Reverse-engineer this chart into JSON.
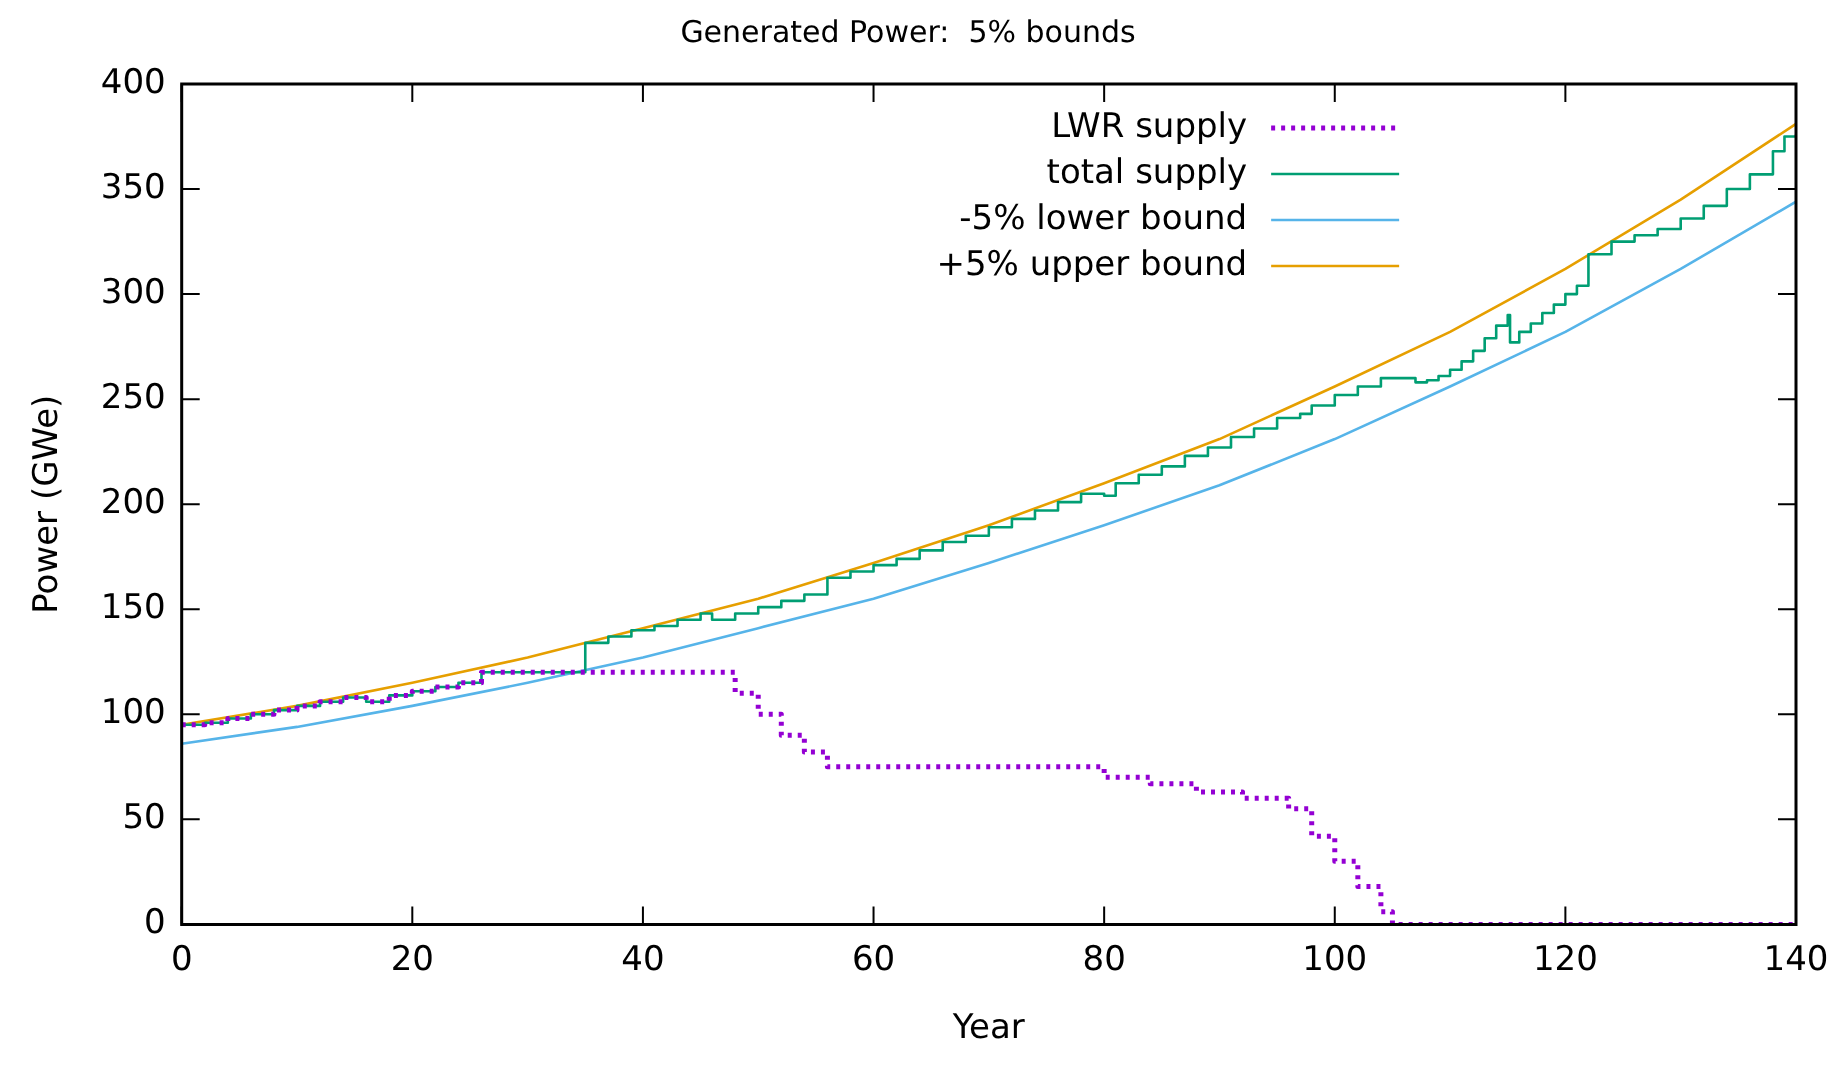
{
  "chart_data": {
    "type": "line",
    "title": "Generated Power:  5% bounds",
    "xlabel": "Year",
    "ylabel": "Power (GWe)",
    "xlim": [
      0,
      140
    ],
    "xticks": [
      0,
      20,
      40,
      60,
      80,
      100,
      120,
      140
    ],
    "ylim": [
      0,
      400
    ],
    "yticks": [
      0,
      50,
      100,
      150,
      200,
      250,
      300,
      350,
      400
    ],
    "grid": false,
    "legend": "top right",
    "marker": "none",
    "series": [
      {
        "name": "LWR supply",
        "type": "step",
        "color": "#9400d3",
        "line_style": "dotted",
        "x": [
          0,
          2,
          4,
          6,
          8,
          10,
          12,
          14,
          16,
          18,
          20,
          22,
          24,
          26,
          46,
          48,
          50,
          52,
          54,
          56,
          79,
          80,
          84,
          88,
          92,
          96,
          98,
          100,
          102,
          104,
          105,
          140
        ],
        "values": [
          95,
          96,
          98,
          100,
          102,
          104,
          106,
          108,
          106,
          109,
          111,
          113,
          115,
          120,
          120,
          110,
          100,
          90,
          82,
          75,
          75,
          70,
          67,
          63,
          60,
          55,
          42,
          30,
          18,
          6,
          0,
          0
        ]
      },
      {
        "name": "total supply",
        "type": "step",
        "color": "#009e73",
        "line_style": "solid",
        "x": [
          0,
          2,
          4,
          6,
          8,
          10,
          12,
          14,
          16,
          18,
          20,
          22,
          24,
          26,
          35,
          37,
          39,
          41,
          43,
          45,
          46,
          48,
          50,
          52,
          54,
          56,
          58,
          60,
          62,
          64,
          66,
          68,
          70,
          72,
          74,
          76,
          78,
          80,
          81,
          83,
          85,
          87,
          89,
          91,
          93,
          95,
          97,
          98,
          100,
          102,
          104,
          107,
          108,
          109,
          110,
          111,
          112,
          113,
          114,
          115,
          115.2,
          116,
          117,
          118,
          119,
          120,
          121,
          122,
          124,
          126,
          128,
          130,
          132,
          134,
          136,
          138,
          139,
          140
        ],
        "values": [
          95,
          96,
          98,
          100,
          102,
          104,
          106,
          108,
          106,
          109,
          111,
          113,
          115,
          120,
          134,
          137,
          140,
          142,
          145,
          148,
          145,
          148,
          151,
          154,
          157,
          165,
          168,
          171,
          174,
          178,
          182,
          185,
          189,
          193,
          197,
          201,
          205,
          204,
          210,
          214,
          218,
          223,
          227,
          232,
          236,
          241,
          243,
          247,
          252,
          256,
          260,
          258,
          259,
          261,
          264,
          268,
          273,
          279,
          285,
          290,
          277,
          282,
          286,
          291,
          295,
          300,
          304,
          319,
          325,
          328,
          331,
          336,
          342,
          350,
          357,
          368,
          375,
          376
        ]
      },
      {
        "name": "-5% lower bound",
        "type": "line",
        "color": "#56b4e9",
        "line_style": "solid",
        "x": [
          0,
          10,
          20,
          30,
          40,
          50,
          60,
          70,
          80,
          90,
          100,
          110,
          120,
          130,
          140
        ],
        "values": [
          86,
          94,
          104,
          115,
          127,
          141,
          155,
          172,
          190,
          209,
          231,
          256,
          282,
          312,
          344
        ]
      },
      {
        "name": "+5% upper bound",
        "type": "line",
        "color": "#e69f00",
        "line_style": "solid",
        "x": [
          0,
          10,
          20,
          30,
          40,
          50,
          60,
          70,
          80,
          90,
          100,
          110,
          120,
          130,
          140
        ],
        "values": [
          95,
          104,
          115,
          127,
          141,
          155,
          172,
          190,
          210,
          231,
          256,
          282,
          312,
          345,
          381
        ]
      }
    ]
  }
}
